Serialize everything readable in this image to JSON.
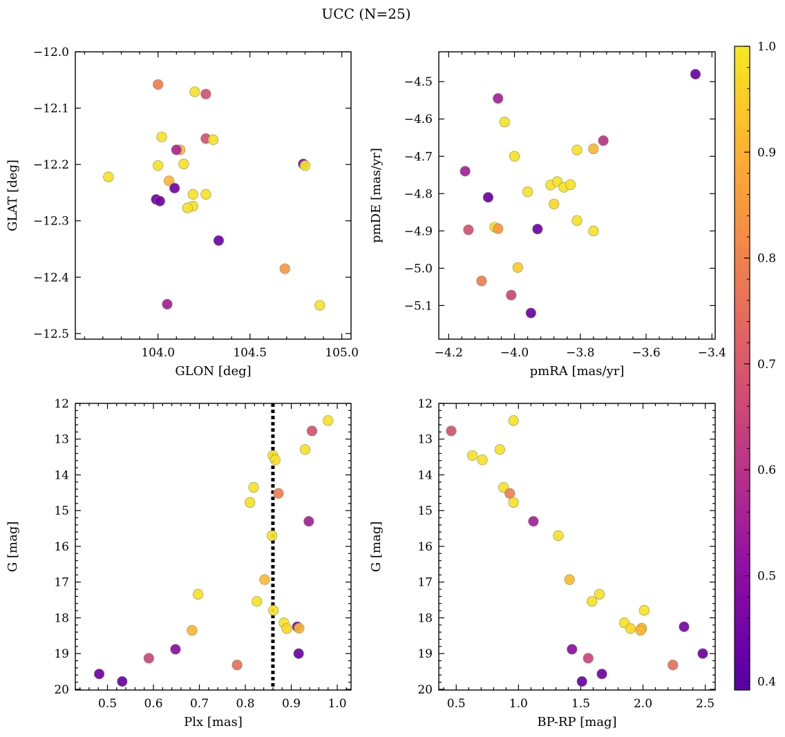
{
  "figure": {
    "title": "UCC (N=25)"
  },
  "colorbar": {
    "min": 0.392,
    "max": 1.0,
    "ticks": [
      0.4,
      0.5,
      0.6,
      0.7,
      0.8,
      0.9,
      1.0
    ],
    "tick_labels": [
      "0.4",
      "0.5",
      "0.6",
      "0.7",
      "0.8",
      "0.9",
      "1.0"
    ],
    "colormap": "plasma",
    "colormap_range": [
      0.15,
      0.96
    ]
  },
  "chart_data": [
    {
      "id": "glon-glat",
      "type": "scatter",
      "xlabel": "GLON [deg]",
      "ylabel": "GLAT [deg]",
      "xlim": [
        103.55,
        105.05
      ],
      "ylim": [
        -12.51,
        -12.0
      ],
      "xticks": [
        104.0,
        104.5,
        105.0
      ],
      "xticklabels": [
        "104.0",
        "104.5",
        "105.0"
      ],
      "yticks": [
        -12.0,
        -12.1,
        -12.2,
        -12.3,
        -12.4,
        -12.5
      ],
      "yticklabels": [
        "−12.0",
        "−12.1",
        "−12.2",
        "−12.3",
        "−12.4",
        "−12.5"
      ],
      "x": [
        104.0,
        104.2,
        104.26,
        104.02,
        104.12,
        104.26,
        104.3,
        104.1,
        104.0,
        104.14,
        103.73,
        104.79,
        104.8,
        104.06,
        104.09,
        104.19,
        104.26,
        103.99,
        104.01,
        104.19,
        104.16,
        104.33,
        104.69,
        104.88,
        104.05
      ],
      "y": [
        -12.058,
        -12.071,
        -12.075,
        -12.151,
        -12.174,
        -12.154,
        -12.156,
        -12.174,
        -12.202,
        -12.199,
        -12.222,
        -12.199,
        -12.202,
        -12.229,
        -12.242,
        -12.253,
        -12.253,
        -12.262,
        -12.265,
        -12.274,
        -12.277,
        -12.335,
        -12.385,
        -12.45,
        -12.448
      ],
      "c": [
        0.79,
        0.99,
        0.68,
        0.99,
        0.91,
        0.68,
        0.99,
        0.57,
        0.99,
        0.99,
        0.99,
        0.48,
        0.99,
        0.91,
        0.45,
        0.99,
        0.99,
        0.43,
        0.45,
        0.99,
        0.99,
        0.44,
        0.85,
        0.99,
        0.55
      ]
    },
    {
      "id": "pm",
      "type": "scatter",
      "xlabel": "pmRA [mas/yr]",
      "ylabel": "pmDE [mas/yr]",
      "xlim": [
        -4.23,
        -3.39
      ],
      "ylim": [
        -5.19,
        -4.42
      ],
      "xticks": [
        -4.2,
        -4.0,
        -3.8,
        -3.6,
        -3.4
      ],
      "xticklabels": [
        "−4.2",
        "−4.0",
        "−3.8",
        "−3.6",
        "−3.4"
      ],
      "yticks": [
        -4.5,
        -4.6,
        -4.7,
        -4.8,
        -4.9,
        -5.0,
        -5.1
      ],
      "yticklabels": [
        "−4.5",
        "−4.6",
        "−4.7",
        "−4.8",
        "−4.9",
        "−5.0",
        "−5.1"
      ],
      "x": [
        -3.45,
        -4.05,
        -4.03,
        -3.73,
        -4.0,
        -3.81,
        -3.76,
        -4.15,
        -4.08,
        -3.96,
        -3.89,
        -3.87,
        -3.85,
        -3.83,
        -3.88,
        -4.06,
        -4.05,
        -3.93,
        -3.81,
        -4.14,
        -3.76,
        -3.99,
        -4.1,
        -4.01,
        -3.95
      ],
      "y": [
        -4.48,
        -4.545,
        -4.608,
        -4.658,
        -4.7,
        -4.683,
        -4.68,
        -4.74,
        -4.81,
        -4.795,
        -4.777,
        -4.768,
        -4.783,
        -4.776,
        -4.828,
        -4.89,
        -4.894,
        -4.895,
        -4.872,
        -4.897,
        -4.9,
        -4.998,
        -5.034,
        -5.072,
        -5.12
      ],
      "c": [
        0.44,
        0.55,
        0.99,
        0.6,
        0.99,
        0.99,
        0.91,
        0.55,
        0.43,
        0.99,
        0.99,
        0.99,
        0.99,
        0.99,
        0.97,
        0.99,
        0.85,
        0.44,
        0.99,
        0.68,
        0.99,
        0.95,
        0.79,
        0.65,
        0.44
      ]
    },
    {
      "id": "plx-g",
      "type": "scatter",
      "xlabel": "Plx [mas]",
      "ylabel": "G [mag]",
      "xlim": [
        0.43,
        1.03
      ],
      "ylim": [
        20.02,
        12.0
      ],
      "y_inverted": true,
      "vline": 0.86,
      "xticks": [
        0.5,
        0.6,
        0.7,
        0.8,
        0.9,
        1.0
      ],
      "xticklabels": [
        "0.5",
        "0.6",
        "0.7",
        "0.8",
        "0.9",
        "1.0"
      ],
      "yticks": [
        12,
        13,
        14,
        15,
        16,
        17,
        18,
        19,
        20
      ],
      "yticklabels": [
        "12",
        "13",
        "14",
        "15",
        "16",
        "17",
        "18",
        "19",
        "20"
      ],
      "x": [
        0.98,
        0.945,
        0.93,
        0.86,
        0.865,
        0.818,
        0.81,
        0.872,
        0.938,
        0.858,
        0.842,
        0.697,
        0.825,
        0.861,
        0.884,
        0.89,
        0.913,
        0.917,
        0.684,
        0.648,
        0.916,
        0.59,
        0.782,
        0.482,
        0.532
      ],
      "y": [
        12.48,
        12.77,
        13.29,
        13.46,
        13.58,
        14.35,
        14.77,
        14.52,
        15.3,
        15.7,
        16.93,
        17.34,
        17.54,
        17.79,
        18.14,
        18.3,
        18.25,
        18.29,
        18.35,
        18.88,
        19.0,
        19.13,
        19.32,
        19.57,
        19.78
      ],
      "c": [
        0.99,
        0.68,
        0.99,
        0.99,
        0.99,
        0.99,
        0.99,
        0.79,
        0.55,
        0.99,
        0.92,
        0.99,
        0.99,
        0.99,
        0.99,
        0.97,
        0.45,
        0.91,
        0.91,
        0.5,
        0.43,
        0.65,
        0.75,
        0.44,
        0.43
      ]
    },
    {
      "id": "bprp-g",
      "type": "scatter",
      "xlabel": "BP-RP [mag]",
      "ylabel": "G [mag]",
      "xlim": [
        0.36,
        2.58
      ],
      "ylim": [
        20.02,
        12.0
      ],
      "y_inverted": true,
      "xticks": [
        0.5,
        1.0,
        1.5,
        2.0,
        2.5
      ],
      "xticklabels": [
        "0.5",
        "1.0",
        "1.5",
        "2.0",
        "2.5"
      ],
      "yticks": [
        12,
        13,
        14,
        15,
        16,
        17,
        18,
        19,
        20
      ],
      "yticklabels": [
        "12",
        "13",
        "14",
        "15",
        "16",
        "17",
        "18",
        "19",
        "20"
      ],
      "x": [
        0.96,
        0.46,
        0.85,
        0.63,
        0.71,
        0.88,
        0.93,
        0.96,
        1.12,
        1.32,
        1.41,
        1.65,
        1.59,
        2.01,
        1.85,
        1.9,
        1.99,
        1.98,
        2.33,
        1.43,
        2.48,
        1.56,
        2.24,
        1.67,
        1.51
      ],
      "y": [
        12.48,
        12.77,
        13.29,
        13.46,
        13.58,
        14.35,
        14.52,
        14.77,
        15.3,
        15.7,
        16.93,
        17.34,
        17.54,
        17.79,
        18.14,
        18.3,
        18.29,
        18.35,
        18.25,
        18.88,
        19.0,
        19.13,
        19.32,
        19.57,
        19.78
      ],
      "c": [
        0.99,
        0.68,
        0.99,
        0.99,
        0.99,
        0.99,
        0.79,
        0.99,
        0.55,
        0.99,
        0.92,
        0.99,
        0.99,
        0.99,
        0.99,
        0.97,
        0.91,
        0.91,
        0.45,
        0.5,
        0.43,
        0.65,
        0.75,
        0.44,
        0.43
      ]
    }
  ]
}
